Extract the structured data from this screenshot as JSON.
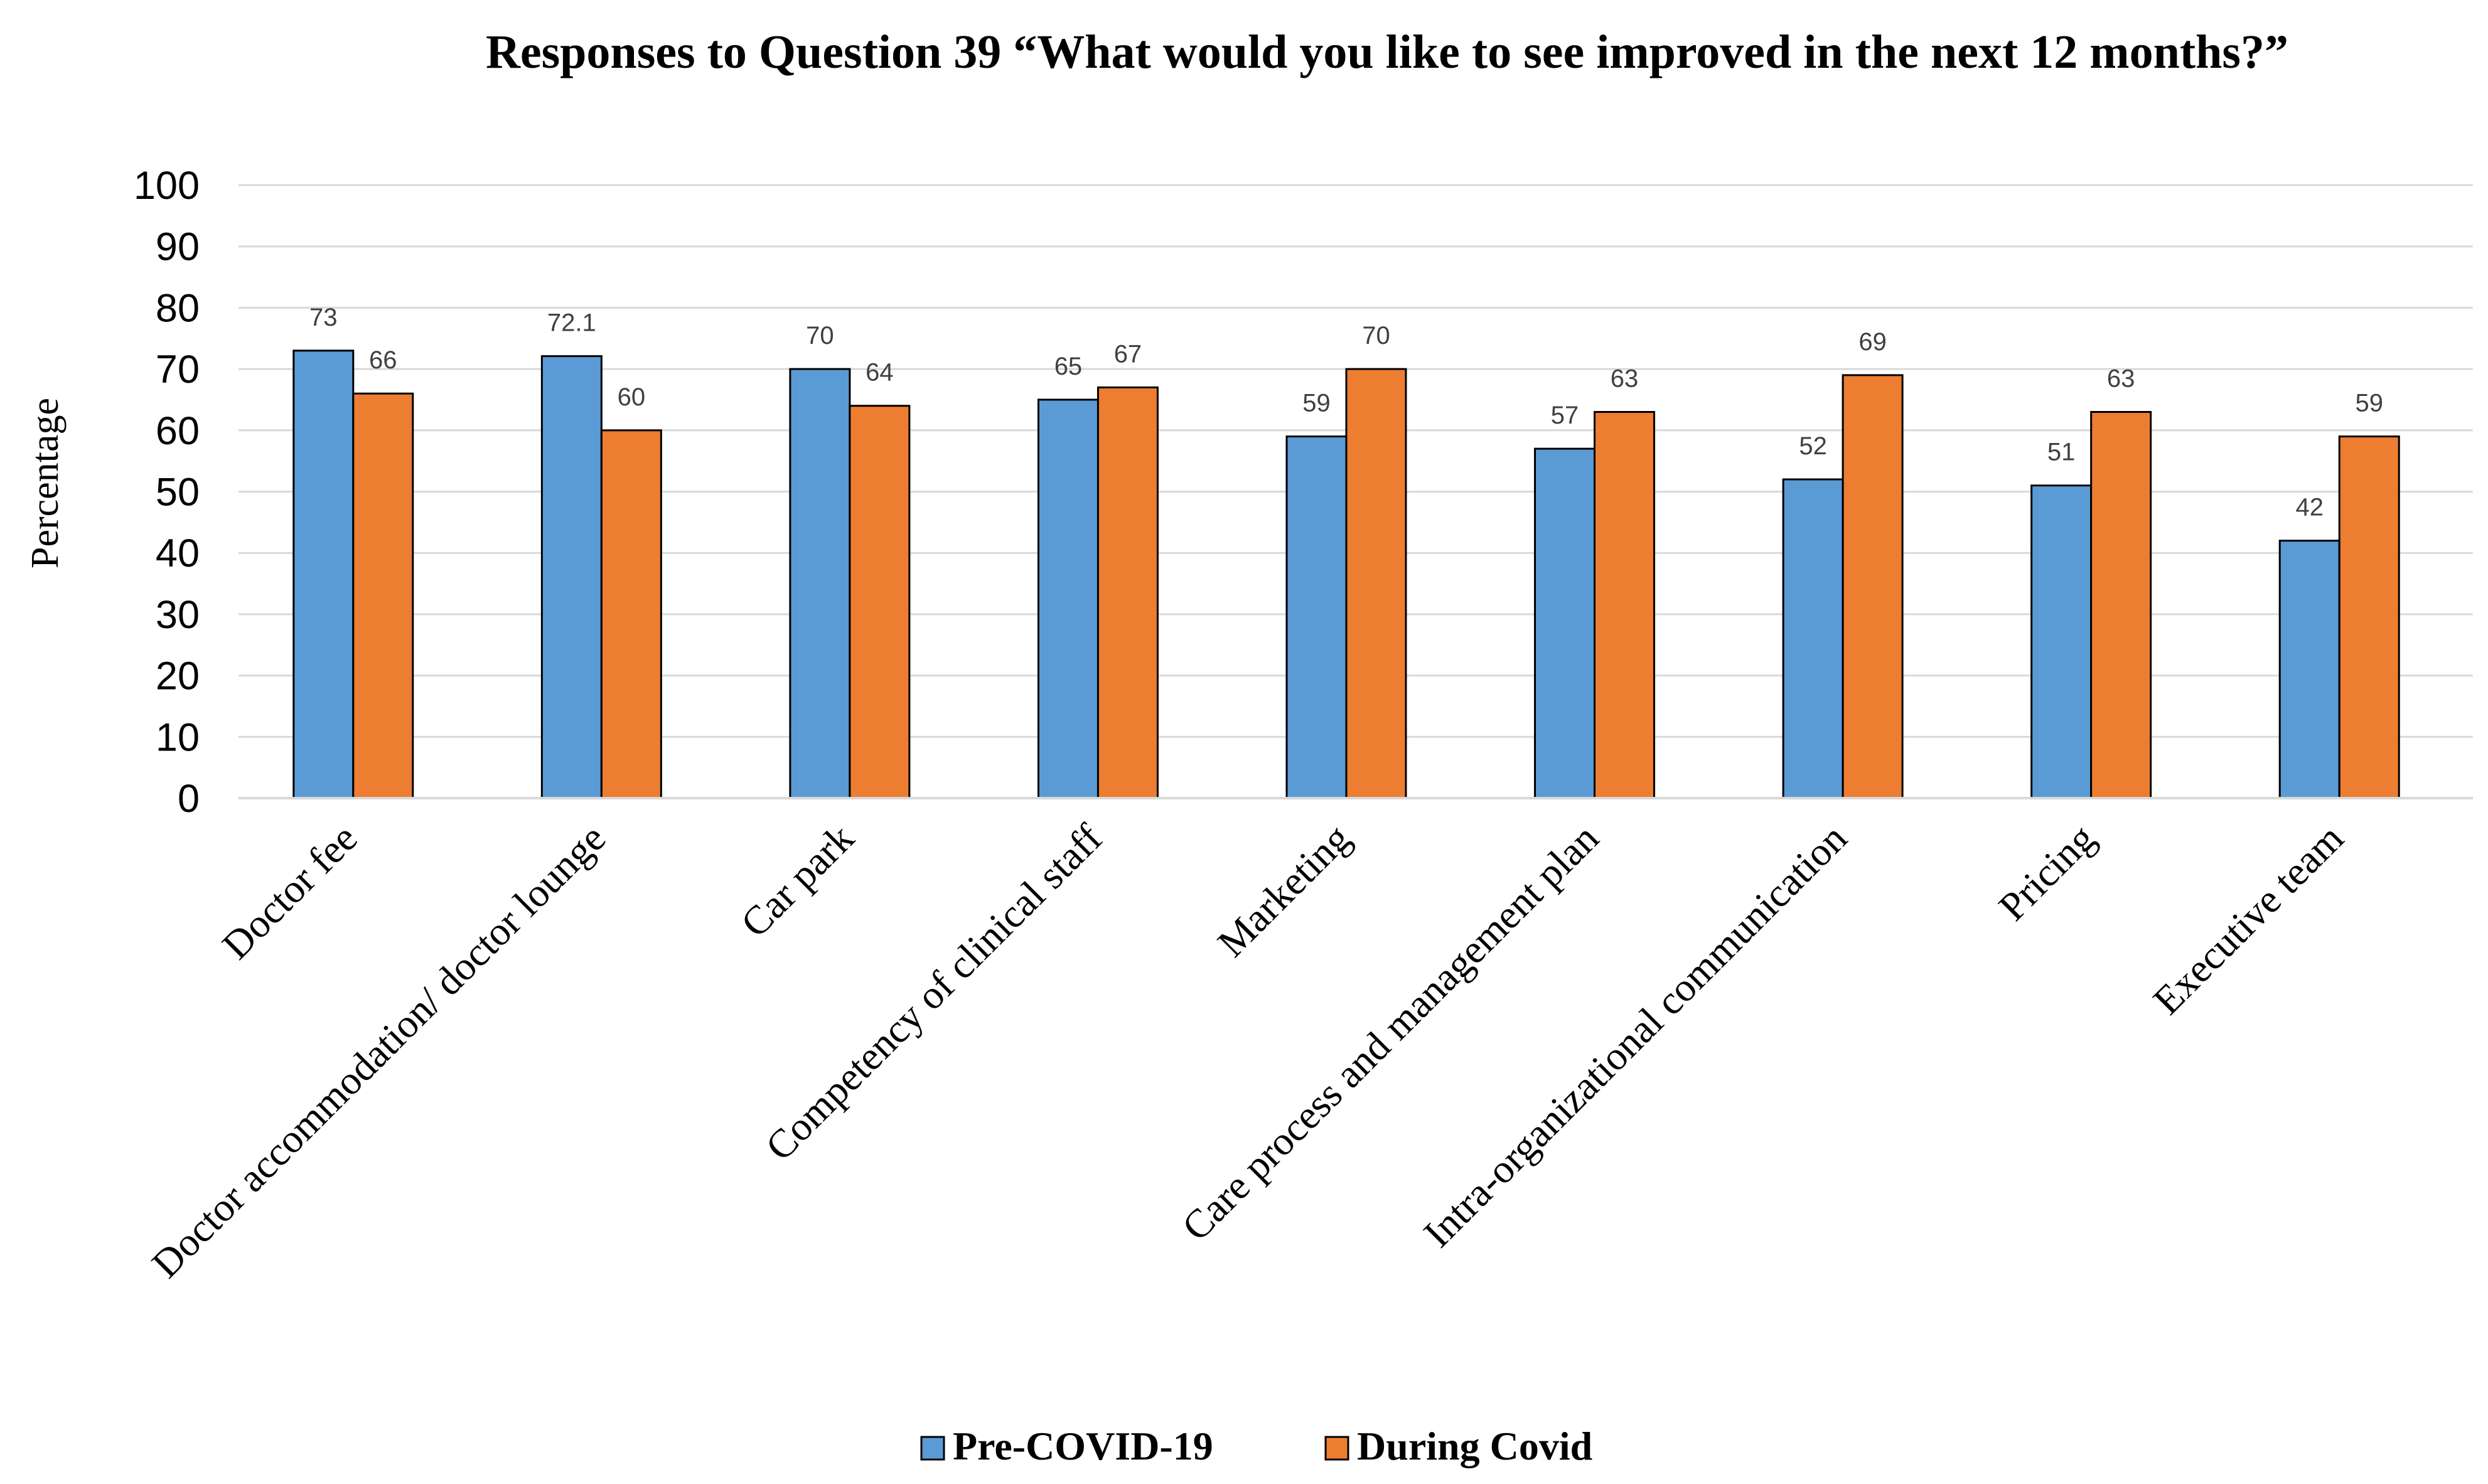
{
  "chart_data": {
    "type": "bar",
    "title": "Responses to Question 39 “What would you like to see improved in the next 12 months?”",
    "xlabel": "",
    "ylabel": "Percentage",
    "ylim": [
      0,
      100
    ],
    "ytick_step": 10,
    "grid": true,
    "legend_position": "bottom",
    "categories": [
      "Doctor fee",
      "Doctor accommodation/ doctor lounge",
      "Car park",
      "Competency of clinical staff",
      "Marketing",
      "Care process and management plan",
      "Intra-organizational communication",
      "Pricing",
      "Executive team"
    ],
    "series": [
      {
        "name": "Pre-COVID-19",
        "color": "#5B9BD5",
        "values": [
          73,
          72.1,
          70,
          65,
          59,
          57,
          52,
          51,
          42
        ]
      },
      {
        "name": "During Covid",
        "color": "#ED7D31",
        "values": [
          66,
          60,
          64,
          67,
          70,
          63,
          69,
          63,
          59
        ]
      }
    ]
  }
}
